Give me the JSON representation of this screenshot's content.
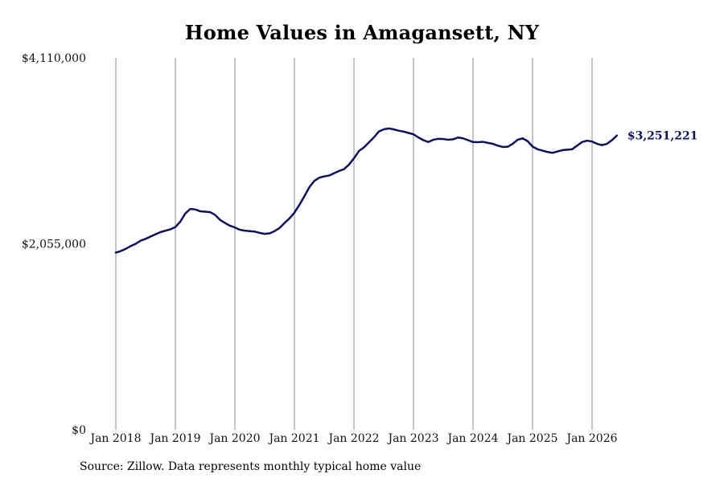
{
  "chart_data": {
    "type": "line",
    "title": "Home Values in Amagansett, NY",
    "source": "Source: Zillow. Data represents monthly typical home value",
    "line_color": "#0f0f5a",
    "gridline_color": "#8c8c8c",
    "grid": "vertical",
    "ylim": [
      0,
      4110000
    ],
    "xlim": [
      "2018-01",
      "2026-09"
    ],
    "y_ticks": [
      {
        "value": 0,
        "label": "$0"
      },
      {
        "value": 2055000,
        "label": "$2,055,000"
      },
      {
        "value": 4110000,
        "label": "$4,110,000"
      }
    ],
    "x_ticks": [
      {
        "date": "2018-01",
        "label": "Jan 2018"
      },
      {
        "date": "2019-01",
        "label": "Jan 2019"
      },
      {
        "date": "2020-01",
        "label": "Jan 2020"
      },
      {
        "date": "2021-01",
        "label": "Jan 2021"
      },
      {
        "date": "2022-01",
        "label": "Jan 2022"
      },
      {
        "date": "2023-01",
        "label": "Jan 2023"
      },
      {
        "date": "2024-01",
        "label": "Jan 2024"
      },
      {
        "date": "2025-01",
        "label": "Jan 2025"
      },
      {
        "date": "2026-01",
        "label": "Jan 2026"
      }
    ],
    "end_label": "$3,251,221",
    "series": [
      {
        "points": [
          [
            "2018-01",
            1958000
          ],
          [
            "2018-02",
            1975000
          ],
          [
            "2018-03",
            2000000
          ],
          [
            "2018-04",
            2030000
          ],
          [
            "2018-05",
            2055000
          ],
          [
            "2018-06",
            2090000
          ],
          [
            "2018-07",
            2110000
          ],
          [
            "2018-08",
            2135000
          ],
          [
            "2018-09",
            2160000
          ],
          [
            "2018-10",
            2185000
          ],
          [
            "2018-11",
            2200000
          ],
          [
            "2018-12",
            2215000
          ],
          [
            "2019-01",
            2240000
          ],
          [
            "2019-02",
            2300000
          ],
          [
            "2019-03",
            2390000
          ],
          [
            "2019-04",
            2440000
          ],
          [
            "2019-05",
            2435000
          ],
          [
            "2019-06",
            2415000
          ],
          [
            "2019-07",
            2410000
          ],
          [
            "2019-08",
            2405000
          ],
          [
            "2019-09",
            2375000
          ],
          [
            "2019-10",
            2320000
          ],
          [
            "2019-11",
            2285000
          ],
          [
            "2019-12",
            2255000
          ],
          [
            "2020-01",
            2235000
          ],
          [
            "2020-02",
            2210000
          ],
          [
            "2020-03",
            2200000
          ],
          [
            "2020-04",
            2195000
          ],
          [
            "2020-05",
            2190000
          ],
          [
            "2020-06",
            2175000
          ],
          [
            "2020-07",
            2165000
          ],
          [
            "2020-08",
            2170000
          ],
          [
            "2020-09",
            2195000
          ],
          [
            "2020-10",
            2230000
          ],
          [
            "2020-11",
            2285000
          ],
          [
            "2020-12",
            2335000
          ],
          [
            "2021-01",
            2400000
          ],
          [
            "2021-02",
            2485000
          ],
          [
            "2021-03",
            2580000
          ],
          [
            "2021-04",
            2680000
          ],
          [
            "2021-05",
            2750000
          ],
          [
            "2021-06",
            2785000
          ],
          [
            "2021-07",
            2800000
          ],
          [
            "2021-08",
            2810000
          ],
          [
            "2021-09",
            2835000
          ],
          [
            "2021-10",
            2860000
          ],
          [
            "2021-11",
            2880000
          ],
          [
            "2021-12",
            2930000
          ],
          [
            "2022-01",
            3000000
          ],
          [
            "2022-02",
            3080000
          ],
          [
            "2022-03",
            3120000
          ],
          [
            "2022-04",
            3175000
          ],
          [
            "2022-05",
            3230000
          ],
          [
            "2022-06",
            3295000
          ],
          [
            "2022-07",
            3320000
          ],
          [
            "2022-08",
            3330000
          ],
          [
            "2022-09",
            3320000
          ],
          [
            "2022-10",
            3305000
          ],
          [
            "2022-11",
            3295000
          ],
          [
            "2022-12",
            3280000
          ],
          [
            "2023-01",
            3265000
          ],
          [
            "2023-02",
            3230000
          ],
          [
            "2023-03",
            3200000
          ],
          [
            "2023-04",
            3180000
          ],
          [
            "2023-05",
            3205000
          ],
          [
            "2023-06",
            3215000
          ],
          [
            "2023-07",
            3213000
          ],
          [
            "2023-08",
            3205000
          ],
          [
            "2023-09",
            3210000
          ],
          [
            "2023-10",
            3230000
          ],
          [
            "2023-11",
            3220000
          ],
          [
            "2023-12",
            3200000
          ],
          [
            "2024-01",
            3180000
          ],
          [
            "2024-02",
            3178000
          ],
          [
            "2024-03",
            3182000
          ],
          [
            "2024-04",
            3170000
          ],
          [
            "2024-05",
            3160000
          ],
          [
            "2024-06",
            3140000
          ],
          [
            "2024-07",
            3125000
          ],
          [
            "2024-08",
            3128000
          ],
          [
            "2024-09",
            3160000
          ],
          [
            "2024-10",
            3205000
          ],
          [
            "2024-11",
            3220000
          ],
          [
            "2024-12",
            3190000
          ],
          [
            "2025-01",
            3130000
          ],
          [
            "2025-02",
            3100000
          ],
          [
            "2025-03",
            3085000
          ],
          [
            "2025-04",
            3070000
          ],
          [
            "2025-05",
            3060000
          ],
          [
            "2025-06",
            3075000
          ],
          [
            "2025-07",
            3090000
          ],
          [
            "2025-08",
            3095000
          ],
          [
            "2025-09",
            3100000
          ],
          [
            "2025-10",
            3140000
          ],
          [
            "2025-11",
            3180000
          ],
          [
            "2025-12",
            3195000
          ],
          [
            "2026-01",
            3185000
          ],
          [
            "2026-02",
            3160000
          ],
          [
            "2026-03",
            3145000
          ],
          [
            "2026-04",
            3160000
          ],
          [
            "2026-05",
            3200000
          ],
          [
            "2026-06",
            3251221
          ]
        ]
      }
    ]
  }
}
